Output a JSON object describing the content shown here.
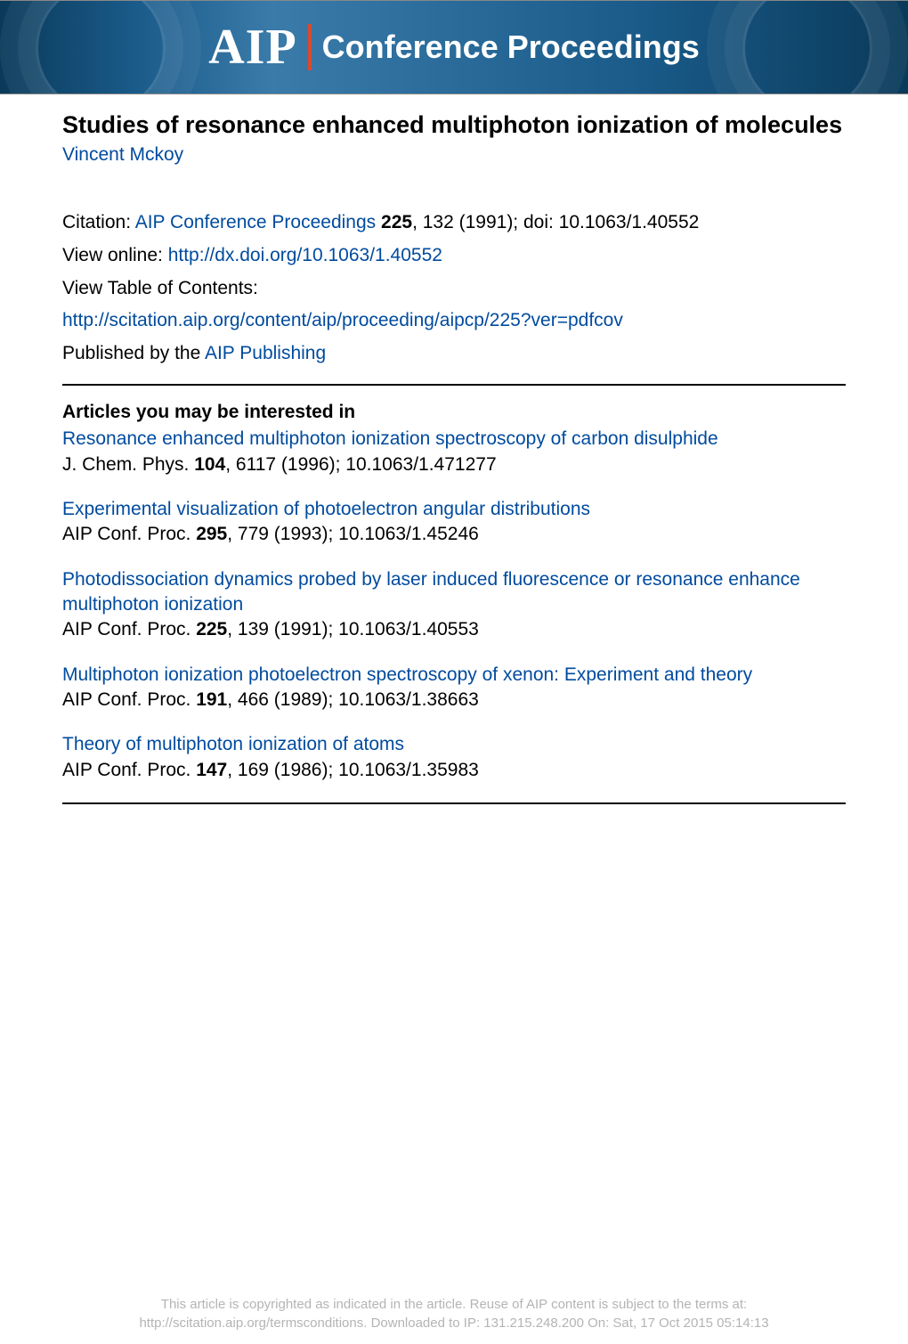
{
  "banner": {
    "logo_text": "AIP",
    "label": "Conference Proceedings",
    "background_colors": [
      "#0a3a5a",
      "#1a5b8a",
      "#3a7baa"
    ],
    "divider_color": "#d94a2e",
    "text_color": "#ffffff"
  },
  "article": {
    "title": "Studies of resonance enhanced multiphoton ionization of molecules",
    "author": "Vincent Mckoy",
    "citation_label": "Citation: ",
    "citation_journal": "AIP Conference Proceedings",
    "citation_vol": "225",
    "citation_rest": ", 132 (1991); doi: 10.1063/1.40552",
    "view_online_label": "View online: ",
    "view_online_url": "http://dx.doi.org/10.1063/1.40552",
    "toc_label": "View Table of Contents:",
    "toc_url": "http://scitation.aip.org/content/aip/proceeding/aipcp/225?ver=pdfcov",
    "published_label": "Published by the ",
    "publisher": "AIP Publishing"
  },
  "related": {
    "heading": "Articles you may be interested in",
    "items": [
      {
        "title": "Resonance enhanced multiphoton ionization spectroscopy of carbon disulphide",
        "journal": "J. Chem. Phys. ",
        "vol": "104",
        "rest": ", 6117 (1996); 10.1063/1.471277"
      },
      {
        "title": "Experimental visualization of photoelectron angular distributions",
        "journal": "AIP Conf. Proc. ",
        "vol": "295",
        "rest": ", 779 (1993); 10.1063/1.45246"
      },
      {
        "title": "Photodissociation dynamics probed by laser induced fluorescence or resonance enhance multiphoton ionization",
        "journal": "AIP Conf. Proc. ",
        "vol": "225",
        "rest": ", 139 (1991); 10.1063/1.40553"
      },
      {
        "title": "Multiphoton ionization photoelectron spectroscopy of xenon: Experiment and theory",
        "journal": "AIP Conf. Proc. ",
        "vol": "191",
        "rest": ", 466 (1989); 10.1063/1.38663"
      },
      {
        "title": "Theory of multiphoton ionization of atoms",
        "journal": "AIP Conf. Proc. ",
        "vol": "147",
        "rest": ", 169 (1986); 10.1063/1.35983"
      }
    ]
  },
  "footer": {
    "line1": "This article is copyrighted as indicated in the article. Reuse of AIP content is subject to the terms at:",
    "line2": "http://scitation.aip.org/termsconditions. Downloaded to  IP:  131.215.248.200 On: Sat, 17 Oct 2015 05:14:13"
  },
  "colors": {
    "link": "#004b9e",
    "text": "#000000",
    "footer_text": "#b4b4b4",
    "background": "#ffffff"
  },
  "typography": {
    "title_fontsize": 27,
    "body_fontsize": 21,
    "footer_fontsize": 15,
    "font_family": "Arial"
  }
}
